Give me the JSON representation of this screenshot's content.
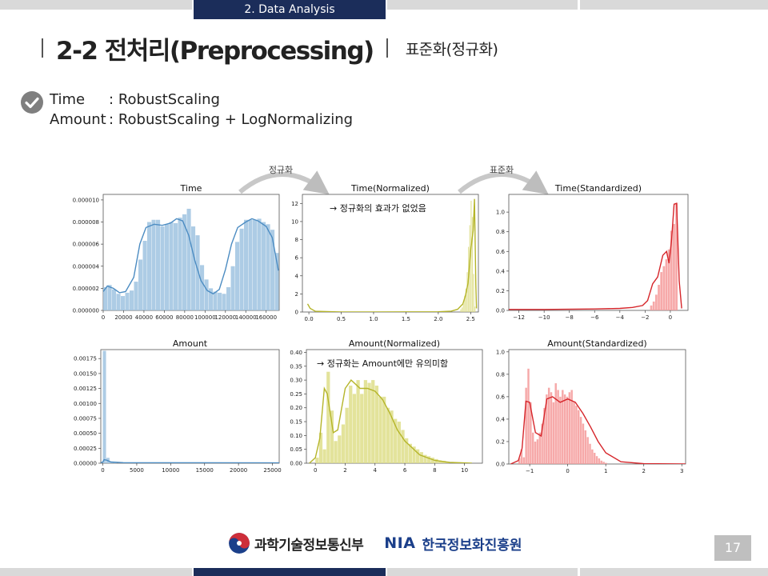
{
  "header": {
    "section_label": "2. Data Analysis"
  },
  "title": "2-2 전처리(Preprocessing)",
  "subtitle": "표준화(정규화)",
  "bullets": [
    {
      "key": "Time",
      "sep": ":",
      "value": "RobustScaling"
    },
    {
      "key": "Amount",
      "sep": ":",
      "value": "RobustScaling + LogNormalizing"
    }
  ],
  "arrows": [
    {
      "label": "정규화"
    },
    {
      "label": "표준화"
    }
  ],
  "footer": {
    "ministry": "과학기술정보통신부",
    "nia_mark": "NIA",
    "nia_name": "한국정보화진흥원",
    "page_number": "17"
  },
  "colors": {
    "blue": "#4c8cc2",
    "blue_fill": "#9fc3e0",
    "olive": "#b5b52a",
    "olive_fill": "#dede8a",
    "red": "#d6262b",
    "red_fill": "#f59a9a",
    "navy": "#1b2d5a"
  },
  "chart_data": [
    {
      "type": "histogram",
      "title": "Time",
      "xlim": [
        0,
        172800
      ],
      "ylim": [
        0,
        1.05e-05
      ],
      "xticks": [
        0,
        20000,
        40000,
        60000,
        80000,
        100000,
        120000,
        140000,
        160000
      ],
      "xtick_labels": [
        "0",
        "20000",
        "40000",
        "60000",
        "80000",
        "100000",
        "120000",
        "140000",
        "160000"
      ],
      "yticks": [
        0,
        2e-06,
        4e-06,
        6e-06,
        8e-06,
        1e-05
      ],
      "ytick_labels": [
        "0.000000",
        "0.000002",
        "0.000004",
        "0.000006",
        "0.000008",
        "0.000010"
      ],
      "color": "blue",
      "bins": {
        "start": 0,
        "width": 4320,
        "values": [
          2.1e-06,
          2.3e-06,
          1.9e-06,
          1.5e-06,
          1.3e-06,
          1.6e-06,
          1.8e-06,
          2.6e-06,
          4.6e-06,
          6.3e-06,
          8e-06,
          8.2e-06,
          8.2e-06,
          7.6e-06,
          7.8e-06,
          8e-06,
          7.9e-06,
          8.4e-06,
          8.7e-06,
          9.2e-06,
          7.6e-06,
          6.8e-06,
          4.1e-06,
          2.8e-06,
          2e-06,
          1.7e-06,
          1.6e-06,
          1.5e-06,
          2.1e-06,
          4e-06,
          6.2e-06,
          7.4e-06,
          8.2e-06,
          8.2e-06,
          8.2e-06,
          8.3e-06,
          8e-06,
          7.8e-06,
          7.3e-06,
          5.2e-06
        ]
      },
      "kde": [
        [
          0,
          1.7e-06
        ],
        [
          4000,
          2.2e-06
        ],
        [
          10000,
          2e-06
        ],
        [
          16000,
          1.6e-06
        ],
        [
          22000,
          1.7e-06
        ],
        [
          30000,
          3e-06
        ],
        [
          36000,
          6e-06
        ],
        [
          42000,
          7.5e-06
        ],
        [
          50000,
          7.8e-06
        ],
        [
          58000,
          7.7e-06
        ],
        [
          66000,
          7.9e-06
        ],
        [
          72000,
          8.3e-06
        ],
        [
          78000,
          8.1e-06
        ],
        [
          84000,
          6.8e-06
        ],
        [
          90000,
          4.5e-06
        ],
        [
          96000,
          2.7e-06
        ],
        [
          102000,
          1.8e-06
        ],
        [
          108000,
          1.5e-06
        ],
        [
          114000,
          1.9e-06
        ],
        [
          120000,
          3.7e-06
        ],
        [
          126000,
          6e-06
        ],
        [
          132000,
          7.5e-06
        ],
        [
          140000,
          8e-06
        ],
        [
          146000,
          8.3e-06
        ],
        [
          152000,
          8.1e-06
        ],
        [
          160000,
          7.6e-06
        ],
        [
          166000,
          6.6e-06
        ],
        [
          172000,
          3.6e-06
        ]
      ]
    },
    {
      "type": "histogram",
      "title": "Time(Normalized)",
      "xlim": [
        -0.1,
        2.62
      ],
      "ylim": [
        0,
        13
      ],
      "xticks": [
        0,
        0.5,
        1,
        1.5,
        2,
        2.5
      ],
      "xtick_labels": [
        "0.0",
        "0.5",
        "1.0",
        "1.5",
        "2.0",
        "2.5"
      ],
      "yticks": [
        0,
        2,
        4,
        6,
        8,
        10,
        12
      ],
      "ytick_labels": [
        "0",
        "2",
        "4",
        "6",
        "8",
        "10",
        "12"
      ],
      "color": "olive",
      "annotation": "→ 정규화의 효과가 없었음",
      "bins": {
        "start": 2.34,
        "width": 0.02,
        "values": [
          0.3,
          0.5,
          0.9,
          1.8,
          2.6,
          4.4,
          7.2,
          9.6,
          12.3,
          10.5,
          4.2,
          0.6
        ]
      },
      "kde": [
        [
          -0.02,
          0.9
        ],
        [
          0.02,
          0.4
        ],
        [
          0.1,
          0.08
        ],
        [
          0.5,
          0.01
        ],
        [
          1.0,
          0.01
        ],
        [
          1.5,
          0.02
        ],
        [
          2.0,
          0.03
        ],
        [
          2.2,
          0.1
        ],
        [
          2.3,
          0.3
        ],
        [
          2.38,
          0.9
        ],
        [
          2.42,
          1.8
        ],
        [
          2.46,
          3.2
        ],
        [
          2.5,
          6.8
        ],
        [
          2.54,
          9.0
        ],
        [
          2.56,
          12.5
        ],
        [
          2.58,
          3.0
        ],
        [
          2.59,
          0.4
        ]
      ]
    },
    {
      "type": "histogram",
      "title": "Time(Standardized)",
      "xlim": [
        -12.8,
        1.4
      ],
      "ylim": [
        0,
        1.18
      ],
      "xticks": [
        -12,
        -10,
        -8,
        -6,
        -4,
        -2,
        0
      ],
      "xtick_labels": [
        "−12",
        "−10",
        "−8",
        "−6",
        "−4",
        "−2",
        "0"
      ],
      "yticks": [
        0,
        0.2,
        0.4,
        0.6,
        0.8,
        1.0
      ],
      "ytick_labels": [
        "0.0",
        "0.2",
        "0.4",
        "0.6",
        "0.8",
        "1.0"
      ],
      "color": "red",
      "bins": {
        "start": -1.6,
        "width": 0.2,
        "values": [
          0.05,
          0.09,
          0.16,
          0.26,
          0.39,
          0.45,
          0.52,
          0.62,
          0.81,
          0.88,
          1.09
        ]
      },
      "kde": [
        [
          -12.8,
          0.01
        ],
        [
          -10,
          0.01
        ],
        [
          -6,
          0.015
        ],
        [
          -4,
          0.02
        ],
        [
          -3,
          0.03
        ],
        [
          -2.2,
          0.05
        ],
        [
          -1.8,
          0.1
        ],
        [
          -1.4,
          0.27
        ],
        [
          -1.0,
          0.34
        ],
        [
          -0.6,
          0.56
        ],
        [
          -0.3,
          0.6
        ],
        [
          -0.1,
          0.48
        ],
        [
          0.1,
          0.72
        ],
        [
          0.3,
          1.08
        ],
        [
          0.5,
          1.09
        ],
        [
          0.7,
          0.3
        ],
        [
          0.9,
          0.02
        ]
      ]
    },
    {
      "type": "histogram",
      "title": "Amount",
      "xlim": [
        -300,
        26000
      ],
      "ylim": [
        0,
        0.0019
      ],
      "xticks": [
        0,
        5000,
        10000,
        15000,
        20000,
        25000
      ],
      "xtick_labels": [
        "0",
        "5000",
        "10000",
        "15000",
        "20000",
        "25000"
      ],
      "yticks": [
        0,
        0.00025,
        0.0005,
        0.00075,
        0.001,
        0.00125,
        0.0015,
        0.00175
      ],
      "ytick_labels": [
        "0.00000",
        "0.00025",
        "0.00050",
        "0.00075",
        "0.00100",
        "0.00125",
        "0.00150",
        "0.00175"
      ],
      "color": "blue",
      "bins": {
        "start": 0,
        "width": 520,
        "values": [
          0.00188,
          9e-05,
          2e-05,
          1e-05
        ]
      },
      "kde": [
        [
          -300,
          1e-05
        ],
        [
          0,
          2e-05
        ],
        [
          200,
          6e-05
        ],
        [
          600,
          5e-05
        ],
        [
          1200,
          2e-05
        ],
        [
          3000,
          1e-05
        ],
        [
          26000,
          5e-06
        ]
      ]
    },
    {
      "type": "histogram",
      "title": "Amount(Normalized)",
      "xlim": [
        -0.6,
        11.2
      ],
      "ylim": [
        0,
        0.41
      ],
      "xticks": [
        0,
        2,
        4,
        6,
        8,
        10
      ],
      "xtick_labels": [
        "0",
        "2",
        "4",
        "6",
        "8",
        "10"
      ],
      "yticks": [
        0,
        0.05,
        0.1,
        0.15,
        0.2,
        0.25,
        0.3,
        0.35,
        0.4
      ],
      "ytick_labels": [
        "0.00",
        "0.05",
        "0.10",
        "0.15",
        "0.20",
        "0.25",
        "0.30",
        "0.35",
        "0.40"
      ],
      "color": "olive",
      "annotation": "→ 정규화는 Amount에만 유의미함",
      "bins": {
        "start": 0.0,
        "width": 0.25,
        "values": [
          0.02,
          0.11,
          0.05,
          0.33,
          0.19,
          0.08,
          0.1,
          0.14,
          0.2,
          0.28,
          0.25,
          0.3,
          0.25,
          0.3,
          0.29,
          0.3,
          0.28,
          0.24,
          0.24,
          0.2,
          0.19,
          0.16,
          0.15,
          0.12,
          0.09,
          0.07,
          0.06,
          0.05,
          0.04,
          0.03,
          0.025,
          0.02,
          0.015,
          0.01,
          0.008,
          0.005
        ]
      },
      "kde": [
        [
          -0.4,
          0.0
        ],
        [
          0,
          0.02
        ],
        [
          0.3,
          0.09
        ],
        [
          0.6,
          0.27
        ],
        [
          0.8,
          0.25
        ],
        [
          1.2,
          0.11
        ],
        [
          1.5,
          0.12
        ],
        [
          2.0,
          0.27
        ],
        [
          2.4,
          0.3
        ],
        [
          3.0,
          0.27
        ],
        [
          3.5,
          0.27
        ],
        [
          4.0,
          0.26
        ],
        [
          4.5,
          0.23
        ],
        [
          5.0,
          0.18
        ],
        [
          5.5,
          0.12
        ],
        [
          6.0,
          0.08
        ],
        [
          7.0,
          0.03
        ],
        [
          8.0,
          0.01
        ],
        [
          9.0,
          0.003
        ],
        [
          10.5,
          0.0
        ]
      ]
    },
    {
      "type": "histogram",
      "title": "Amount(Standardized)",
      "xlim": [
        -1.55,
        3.1
      ],
      "ylim": [
        0,
        1.02
      ],
      "xticks": [
        -1,
        0,
        1,
        2,
        3
      ],
      "xtick_labels": [
        "−1",
        "0",
        "1",
        "2",
        "3"
      ],
      "yticks": [
        0,
        0.2,
        0.4,
        0.6,
        0.8,
        1.0
      ],
      "ytick_labels": [
        "0.0",
        "0.2",
        "0.4",
        "0.6",
        "0.8",
        "1.0"
      ],
      "color": "red",
      "bins": {
        "start": -1.3,
        "width": 0.06,
        "values": [
          0.05,
          0.13,
          0.06,
          0.68,
          0.85,
          0.55,
          0.28,
          0.2,
          0.22,
          0.28,
          0.36,
          0.5,
          0.62,
          0.68,
          0.64,
          0.55,
          0.72,
          0.66,
          0.6,
          0.66,
          0.62,
          0.6,
          0.64,
          0.66,
          0.56,
          0.52,
          0.48,
          0.42,
          0.36,
          0.3,
          0.24,
          0.18,
          0.13,
          0.1,
          0.07,
          0.05,
          0.03,
          0.02,
          0.01
        ]
      },
      "kde": [
        [
          -1.5,
          0.0
        ],
        [
          -1.3,
          0.03
        ],
        [
          -1.2,
          0.14
        ],
        [
          -1.1,
          0.56
        ],
        [
          -1.0,
          0.55
        ],
        [
          -0.85,
          0.28
        ],
        [
          -0.7,
          0.25
        ],
        [
          -0.55,
          0.58
        ],
        [
          -0.4,
          0.6
        ],
        [
          -0.2,
          0.55
        ],
        [
          0.0,
          0.58
        ],
        [
          0.2,
          0.55
        ],
        [
          0.4,
          0.45
        ],
        [
          0.6,
          0.33
        ],
        [
          0.8,
          0.2
        ],
        [
          1.0,
          0.1
        ],
        [
          1.4,
          0.02
        ],
        [
          2.0,
          0.003
        ],
        [
          3.1,
          0.0
        ]
      ]
    }
  ]
}
